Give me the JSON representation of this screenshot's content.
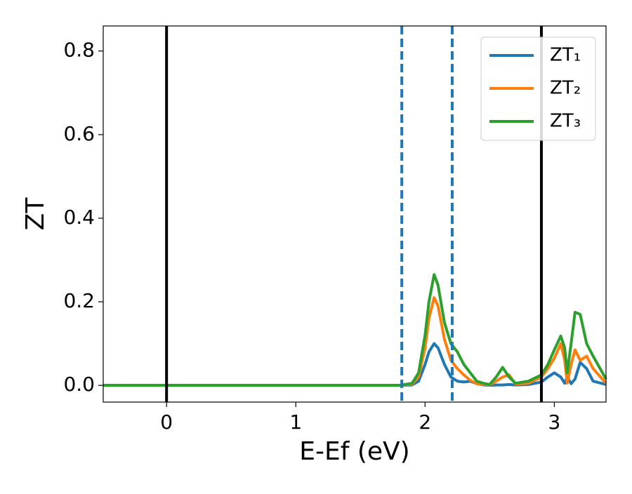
{
  "chart_data": {
    "type": "line",
    "xlabel": "E-Ef (eV)",
    "ylabel": "ZT",
    "x": [
      -0.49,
      1.8,
      1.9,
      1.95,
      2.0,
      2.03,
      2.07,
      2.1,
      2.15,
      2.2,
      2.25,
      2.3,
      2.35,
      2.4,
      2.45,
      2.5,
      2.55,
      2.6,
      2.65,
      2.7,
      2.8,
      2.9,
      2.95,
      3.0,
      3.05,
      3.08,
      3.1,
      3.13,
      3.16,
      3.2,
      3.25,
      3.3,
      3.4
    ],
    "series": [
      {
        "name": "ZT₁",
        "color": "#1f77b4",
        "values": [
          0,
          0,
          0.001,
          0.01,
          0.05,
          0.08,
          0.1,
          0.09,
          0.05,
          0.02,
          0.01,
          0.008,
          0.01,
          0.004,
          0.001,
          0,
          0.001,
          0.001,
          0.002,
          0.001,
          0.002,
          0.008,
          0.02,
          0.03,
          0.02,
          0.005,
          0.02,
          0.004,
          0.015,
          0.055,
          0.04,
          0.01,
          0.002
        ]
      },
      {
        "name": "ZT₂",
        "color": "#ff7f0e",
        "values": [
          0,
          0,
          0.003,
          0.02,
          0.09,
          0.16,
          0.21,
          0.19,
          0.11,
          0.06,
          0.04,
          0.025,
          0.012,
          0.004,
          0.002,
          0.001,
          0.01,
          0.02,
          0.025,
          0.003,
          0.005,
          0.02,
          0.04,
          0.065,
          0.1,
          0.06,
          0.005,
          0.05,
          0.085,
          0.06,
          0.07,
          0.04,
          0.005
        ]
      },
      {
        "name": "ZT₃",
        "color": "#2ca02c",
        "values": [
          0,
          0,
          0.005,
          0.03,
          0.12,
          0.2,
          0.265,
          0.24,
          0.15,
          0.1,
          0.08,
          0.05,
          0.03,
          0.01,
          0.005,
          0.002,
          0.02,
          0.043,
          0.02,
          0.005,
          0.01,
          0.025,
          0.05,
          0.085,
          0.118,
          0.09,
          0.03,
          0.1,
          0.175,
          0.17,
          0.1,
          0.07,
          0.015
        ]
      }
    ],
    "vlines": [
      {
        "x": 0,
        "color": "#000000",
        "style": "solid"
      },
      {
        "x": 2.9,
        "color": "#000000",
        "style": "solid"
      },
      {
        "x": 1.82,
        "color": "#1f77b4",
        "style": "dashed"
      },
      {
        "x": 2.21,
        "color": "#1f77b4",
        "style": "dashed"
      }
    ],
    "xlim": [
      -0.49,
      3.4
    ],
    "ylim": [
      -0.04,
      0.86
    ],
    "xticks": [
      0,
      1,
      2,
      3
    ],
    "yticks": [
      {
        "value": 0,
        "label": "0.0"
      },
      0.2,
      0.4,
      0.6,
      0.8
    ],
    "legend": "upper right",
    "grid": false
  }
}
